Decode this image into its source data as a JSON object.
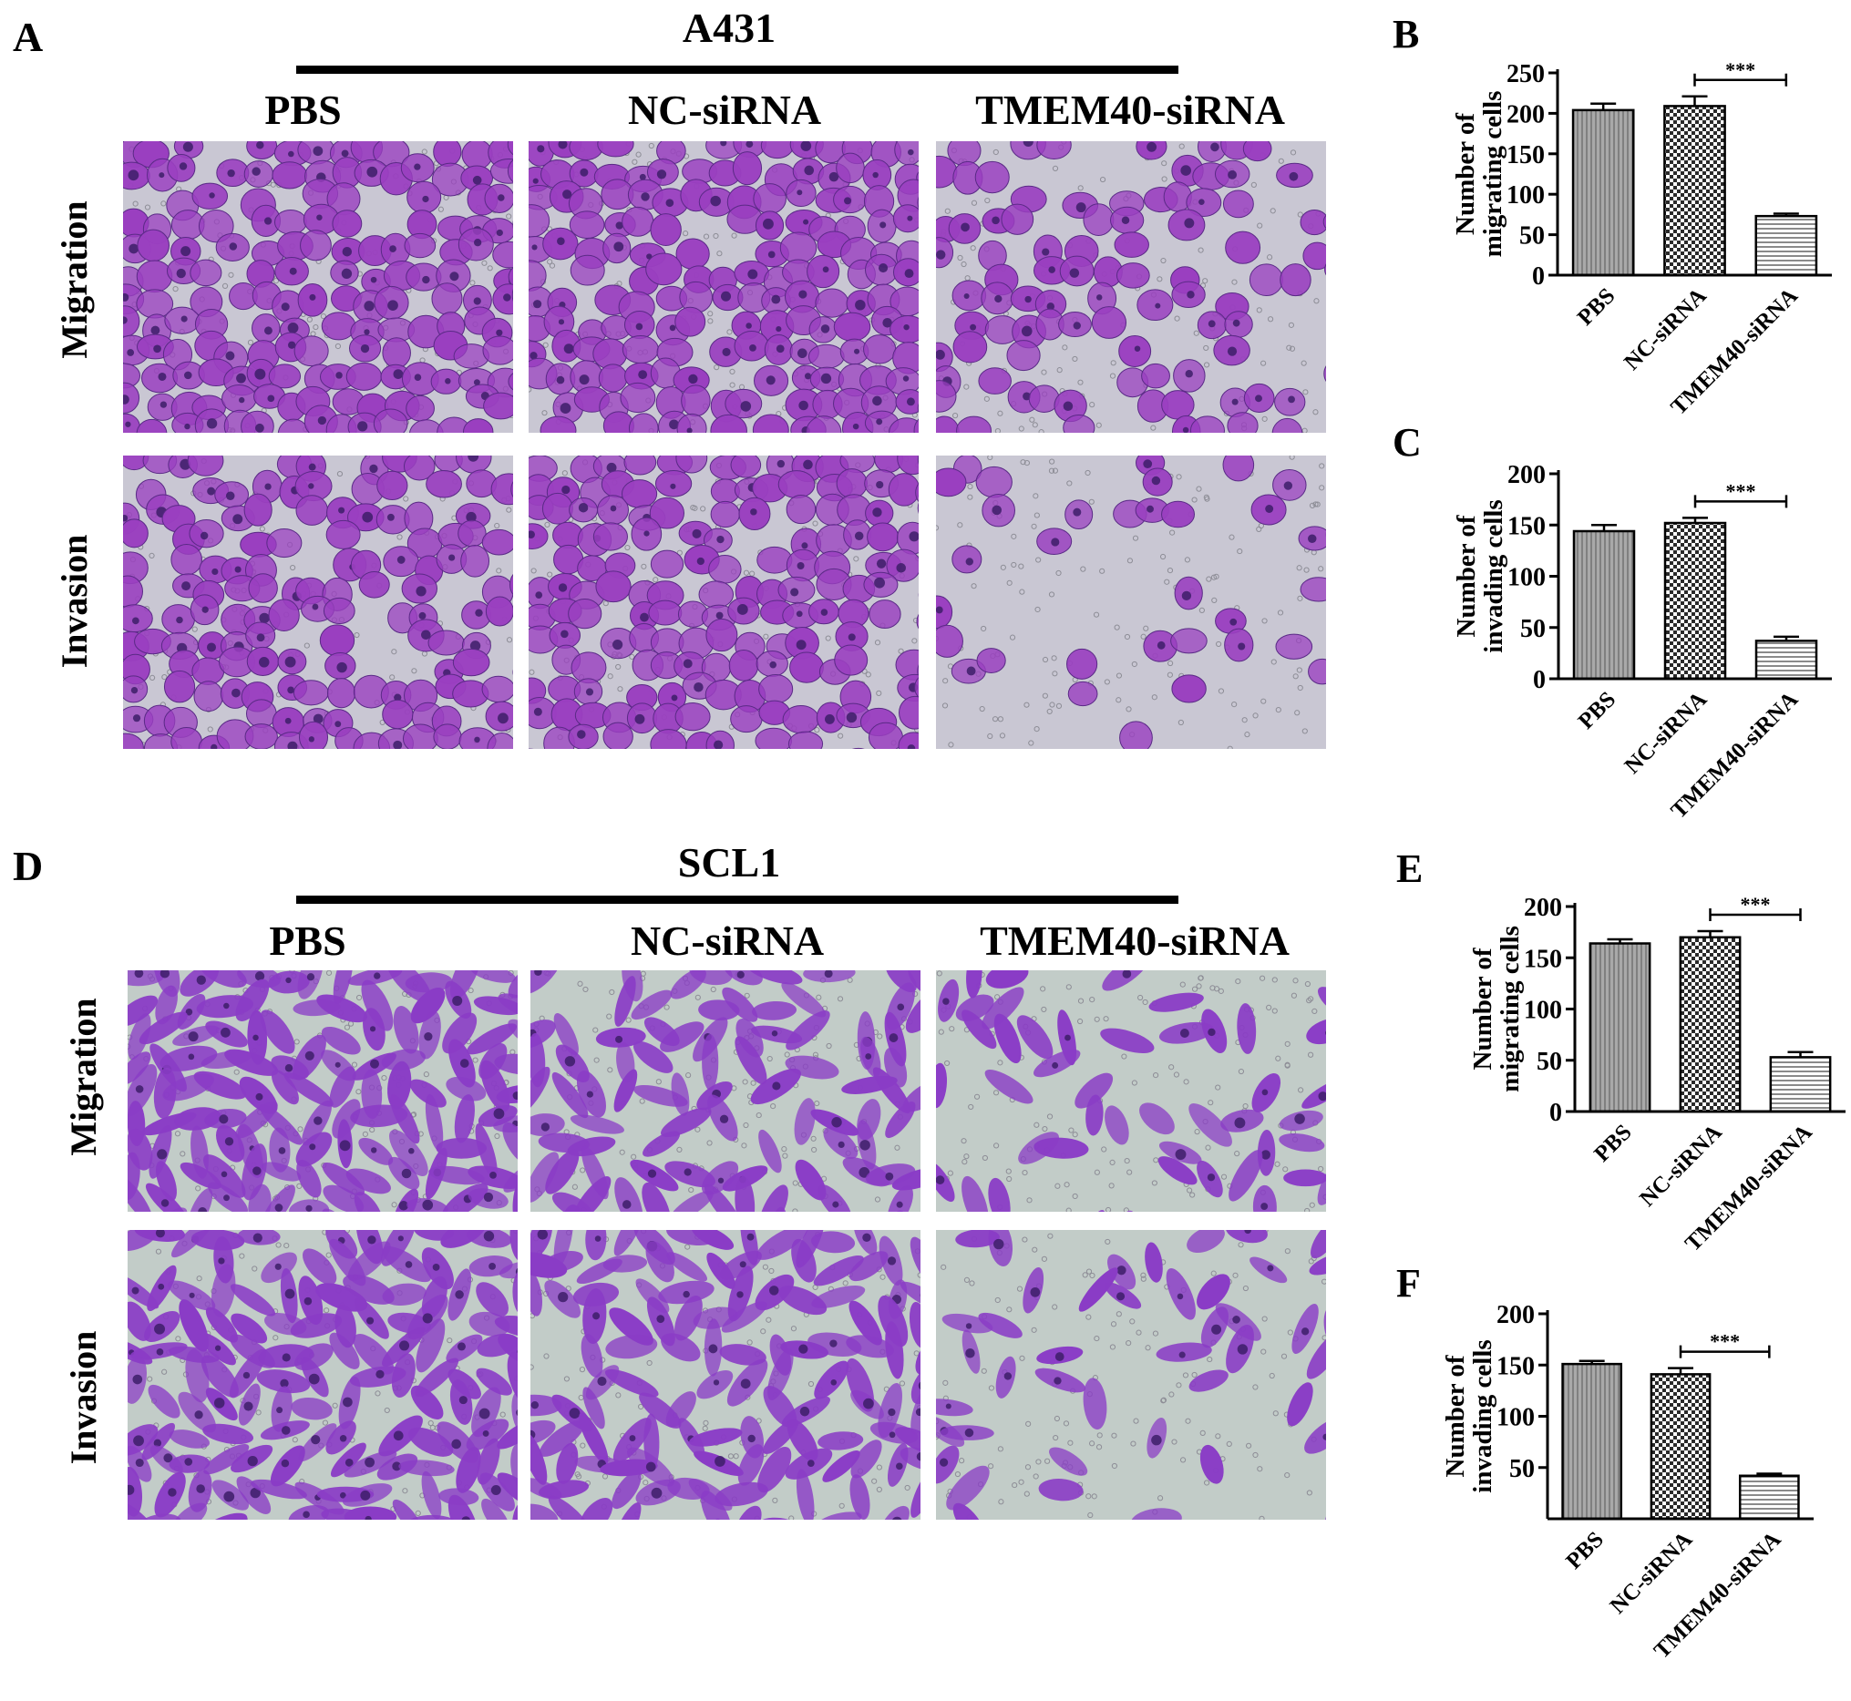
{
  "figure": {
    "section_a": {
      "letter": "A",
      "cell_line": "A431"
    },
    "section_d": {
      "letter": "D",
      "cell_line": "SCL1"
    },
    "column_labels": [
      "PBS",
      "NC-siRNA",
      "TMEM40-siRNA"
    ],
    "row_labels": [
      "Migration",
      "Invasion"
    ],
    "colors": {
      "a431_background": "#c9c7d3",
      "a431_cell": "#9a3fc0",
      "scl1_background": "#c2ccc8",
      "scl1_cell": "#8a3cc6",
      "nucleus": "#3d1d68"
    }
  },
  "chart_data": [
    {
      "panel": "B",
      "type": "bar",
      "categories": [
        "PBS",
        "NC-siRNA",
        "TMEM40-siRNA"
      ],
      "values": [
        204,
        209,
        73
      ],
      "errors": [
        8,
        12,
        3
      ],
      "ylabel_lines": [
        "Number of",
        "migrating cells"
      ],
      "ylim": [
        0,
        250
      ],
      "yticks": [
        0,
        50,
        100,
        150,
        200,
        250
      ],
      "significance": {
        "label": "***",
        "from": 1,
        "to": 2
      }
    },
    {
      "panel": "C",
      "type": "bar",
      "categories": [
        "PBS",
        "NC-siRNA",
        "TMEM40-siRNA"
      ],
      "values": [
        144,
        152,
        37
      ],
      "errors": [
        6,
        5,
        4
      ],
      "ylabel_lines": [
        "Number of",
        "invading cells"
      ],
      "ylim": [
        0,
        200
      ],
      "yticks": [
        0,
        50,
        100,
        150,
        200
      ],
      "significance": {
        "label": "***",
        "from": 1,
        "to": 2
      }
    },
    {
      "panel": "E",
      "type": "bar",
      "categories": [
        "PBS",
        "NC-siRNA",
        "TMEM40-siRNA"
      ],
      "values": [
        164,
        170,
        53
      ],
      "errors": [
        4,
        6,
        5
      ],
      "ylabel_lines": [
        "Number of",
        "migrating cells"
      ],
      "ylim": [
        0,
        200
      ],
      "yticks": [
        0,
        50,
        100,
        150,
        200
      ],
      "significance": {
        "label": "***",
        "from": 1,
        "to": 2
      }
    },
    {
      "panel": "F",
      "type": "bar",
      "categories": [
        "PBS",
        "NC-siRNA",
        "TMEM40-siRNA"
      ],
      "values": [
        151,
        141,
        42
      ],
      "errors": [
        3,
        6,
        2
      ],
      "ylabel_lines": [
        "Number of",
        "invading cells"
      ],
      "ylim": [
        0,
        200
      ],
      "yticks": [
        50,
        100,
        150,
        200
      ],
      "significance": {
        "label": "***",
        "from": 1,
        "to": 2
      }
    }
  ]
}
